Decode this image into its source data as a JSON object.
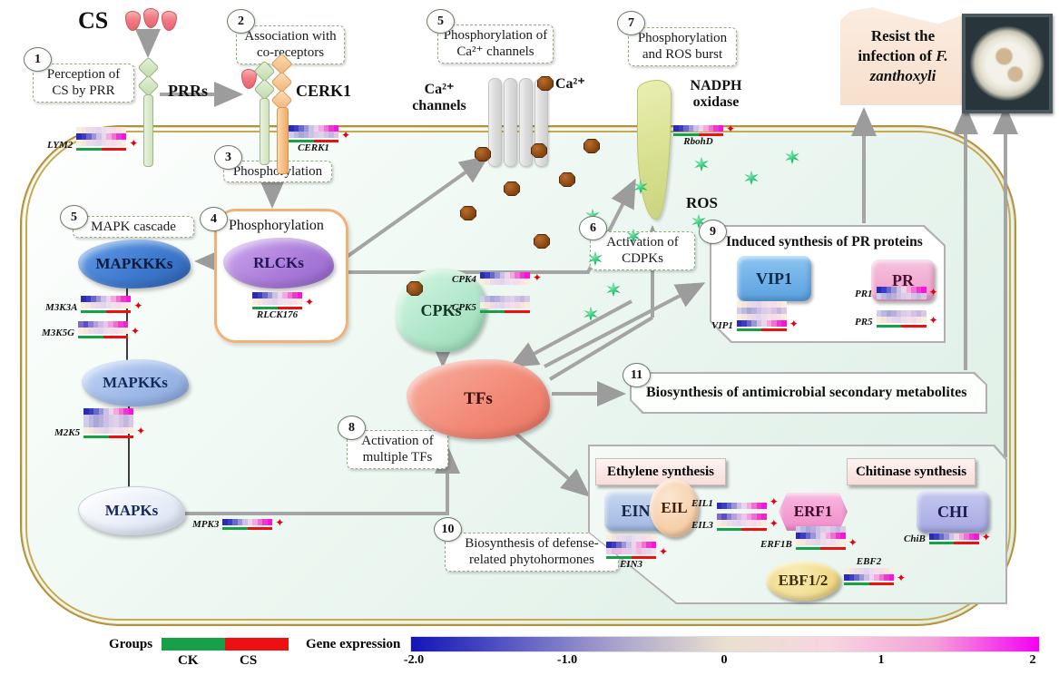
{
  "banner": {
    "line1": "Resist the",
    "line2": "infection of",
    "line2_italic": "F.",
    "line3_italic": "zanthoxyli"
  },
  "nodes": {
    "cs": "CS",
    "prrs": "PRRs",
    "cerk1": "CERK1",
    "ca_channels_1": "Ca²⁺",
    "ca_channels_2": "channels",
    "ca_ion": "Ca²⁺",
    "nadph_1": "NADPH",
    "nadph_2": "oxidase",
    "ros": "ROS",
    "mapkkks": "MAPKKKs",
    "mapkks": "MAPKKs",
    "mapks": "MAPKs",
    "rlcks": "RLCKs",
    "cpks": "CPKs",
    "tfs": "TFs",
    "vip1": "VIP1",
    "pr": "PR",
    "ein3": "EIN3",
    "eil": "EIL",
    "erf1": "ERF1",
    "chi": "CHI",
    "ebf12": "EBF1/2",
    "ethylene": "Ethylene synthesis",
    "chitinase": "Chitinase synthesis"
  },
  "steps": {
    "s1": {
      "num": "1",
      "text": "Perception of CS by PRR"
    },
    "s2": {
      "num": "2",
      "text": "Association with co-receptors"
    },
    "s3": {
      "num": "3",
      "text": "Phosphorylation"
    },
    "s4": {
      "num": "4",
      "text": "Phosphorylation"
    },
    "s5_mapk": {
      "num": "5",
      "text": "MAPK cascade"
    },
    "s5_ca": {
      "num": "5",
      "text": "Phosphorylation of Ca²⁺ channels"
    },
    "s6": {
      "num": "6",
      "text": "Activation of CDPKs"
    },
    "s7": {
      "num": "7",
      "text": "Phosphorylation and ROS burst"
    },
    "s8": {
      "num": "8",
      "text": "Activation of multiple TFs"
    },
    "s9": {
      "num": "9",
      "text": "Induced synthesis of PR proteins"
    },
    "s10": {
      "num": "10",
      "text": "Biosynthesis of defense-related phytohormones"
    },
    "s11": {
      "num": "11",
      "text": "Biosynthesis of antimicrobial secondary metabolites"
    }
  },
  "palettes": {
    "vivid": [
      "#2a2ab4",
      "#3c3cc4",
      "#6868cc",
      "#9c94d8",
      "#ccc0e4",
      "#ecd4ec",
      "#f4a8e0",
      "#f070d4",
      "#ec38cc",
      "#f814dc"
    ],
    "vivid2": [
      "#7a6cc8",
      "#5a50c0",
      "#8c80cc",
      "#b4a0dc",
      "#d4b8e4",
      "#ecc4ec",
      "#f49ade",
      "#ee6ed2",
      "#f03cd0",
      "#e828c4"
    ],
    "lav": [
      "#d0ccec",
      "#bcb8e0",
      "#a8a8d8",
      "#b8b0dc",
      "#ccc0e4",
      "#d8cce8",
      "#e0d0ea",
      "#d4c4e4",
      "#c4b8de",
      "#d8c8e6"
    ],
    "pale": [
      "#f8eedd",
      "#f4e6da",
      "#eedce4",
      "#e8d8ec",
      "#e2d4ea",
      "#ecdcec",
      "#f2e0ea",
      "#f6dce6",
      "#f8e4e2",
      "#f9eedd"
    ],
    "mix": [
      "#e8d0e8",
      "#d8c0e4",
      "#f0b8e0",
      "#ecc8e8",
      "#e0cce8",
      "#f4d0e8",
      "#eebce0",
      "#f6c8e8",
      "#e4d4ec",
      "#f2dce8"
    ]
  },
  "heatmaps": {
    "LYM2": {
      "label": "LYM2",
      "rows": [
        "pale",
        "vivid",
        "pale"
      ],
      "plus": true
    },
    "CERK1": {
      "label": "CERK1",
      "rows": [
        "vivid",
        "lav"
      ],
      "plus": true
    },
    "M3K3A": {
      "label": "M3K3A",
      "rows": [
        "vivid",
        "pale"
      ],
      "plus": true
    },
    "M3K5G": {
      "label": "M3K5G",
      "rows": [
        "vivid2",
        "pale"
      ],
      "plus": true
    },
    "M2K5": {
      "label": "M2K5",
      "rows": [
        "vivid",
        "lav",
        "lav",
        "pale"
      ],
      "plus": true
    },
    "MPK3": {
      "label": "MPK3",
      "rows": [
        "vivid"
      ],
      "plus": true
    },
    "RLCK176": {
      "label": "RLCK176",
      "rows": [
        "vivid",
        "pale"
      ],
      "plus": true
    },
    "CPK4": {
      "label": "CPK4",
      "rows": [
        "vivid",
        "pale"
      ],
      "plus": true,
      "bar": false
    },
    "CPK5": {
      "label": "CPK5",
      "rows": [
        "lav",
        "pale"
      ],
      "plus": false
    },
    "RbohD": {
      "label": "RbohD",
      "rows": [
        "vivid"
      ],
      "plus": true
    },
    "VIP1": {
      "label": "VIP1",
      "rows": [
        "pale",
        "lav",
        "pale",
        "vivid"
      ],
      "plus": true
    },
    "PR1": {
      "label": "PR1",
      "rows": [
        "vivid",
        "lav"
      ],
      "plus": true,
      "bar": false
    },
    "PR5": {
      "label": "PR5",
      "rows": [
        "lav",
        "pale"
      ],
      "plus": true
    },
    "EIL1": {
      "label": "EIL1",
      "rows": [
        "vivid"
      ],
      "plus": true,
      "bar": false
    },
    "EIL3": {
      "label": "EIL3",
      "rows": [
        "vivid2",
        "pale"
      ],
      "plus": true
    },
    "EIN3": {
      "label": "EIN3",
      "rows": [
        "pale",
        "vivid",
        "mix"
      ],
      "plus": true
    },
    "ERF1B": {
      "label": "ERF1B",
      "rows": [
        "lav",
        "vivid",
        "pale"
      ],
      "plus": true
    },
    "ChiB": {
      "label": "ChiB",
      "rows": [
        "vivid"
      ],
      "plus": true
    },
    "EBF2": {
      "label": "EBF2",
      "rows": [
        "pale",
        "vivid"
      ],
      "plus": true
    }
  },
  "legend": {
    "groups_label": "Groups",
    "ck": "CK",
    "cs": "CS",
    "ck_color": "#18a048",
    "cs_color": "#ee1010",
    "expr_label": "Gene expression",
    "ticks": [
      "-2.0",
      "-1.0",
      "0",
      "1",
      "2"
    ],
    "up_marker": "✦",
    "gradient": [
      "#1414b8",
      "#5c5cc4",
      "#aca6cc",
      "#e9e0cf",
      "#f6d6e0",
      "#f4a0d8",
      "#f400f4"
    ]
  }
}
